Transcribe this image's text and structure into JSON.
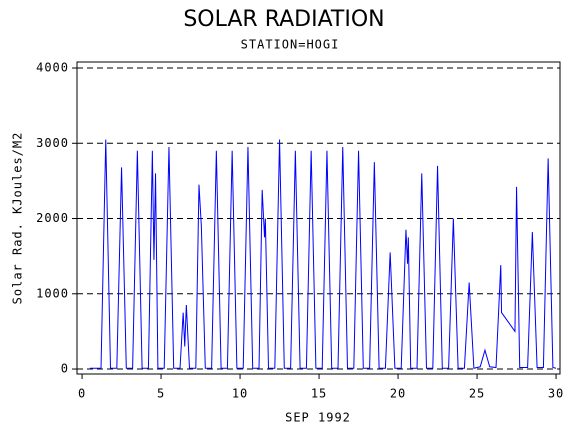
{
  "chart_data": {
    "type": "line",
    "title": "SOLAR RADIATION",
    "subtitle": "STATION=HOGI",
    "xlabel": "SEP 1992",
    "ylabel": "Solar Rad. KJoules/M2",
    "xlim": [
      -0.32,
      30.25
    ],
    "ylim": [
      -66,
      4080
    ],
    "xticks": [
      0,
      5,
      10,
      15,
      20,
      25,
      30
    ],
    "yticks": [
      0,
      1000,
      2000,
      3000,
      4000
    ],
    "grid": true,
    "series": [
      {
        "color": "#0000ff",
        "x": [
          0.5,
          1.2,
          1.5,
          1.8,
          2.2,
          2.5,
          2.8,
          3.2,
          3.5,
          3.8,
          4.2,
          4.45,
          4.55,
          4.65,
          4.8,
          5.2,
          5.5,
          5.8,
          6.2,
          6.4,
          6.5,
          6.6,
          6.8,
          7.2,
          7.4,
          7.55,
          7.8,
          8.2,
          8.5,
          8.8,
          9.2,
          9.5,
          9.8,
          10.2,
          10.5,
          10.8,
          11.2,
          11.4,
          11.55,
          11.6,
          11.8,
          12.2,
          12.5,
          12.8,
          13.2,
          13.5,
          13.8,
          14.2,
          14.5,
          14.8,
          15.2,
          15.5,
          15.8,
          16.2,
          16.5,
          16.8,
          17.2,
          17.5,
          17.8,
          18.2,
          18.5,
          18.8,
          19.2,
          19.5,
          19.8,
          20.2,
          20.5,
          20.6,
          20.65,
          20.8,
          21.2,
          21.5,
          21.8,
          22.2,
          22.5,
          22.8,
          23.2,
          23.5,
          23.8,
          24.2,
          24.5,
          24.8,
          25.2,
          25.5,
          25.8,
          26.2,
          26.5,
          26.55,
          27.4,
          27.5,
          27.7,
          28.2,
          28.5,
          28.8,
          29.2,
          29.5,
          29.8,
          30.0
        ],
        "values": [
          10,
          10,
          3050,
          10,
          10,
          2680,
          10,
          10,
          2900,
          10,
          10,
          2900,
          1450,
          2600,
          10,
          10,
          2950,
          10,
          10,
          750,
          300,
          850,
          10,
          10,
          2450,
          1900,
          10,
          10,
          2900,
          10,
          10,
          2900,
          10,
          10,
          2950,
          10,
          10,
          2380,
          1750,
          2000,
          10,
          10,
          3050,
          10,
          10,
          2900,
          10,
          10,
          2900,
          10,
          10,
          2900,
          10,
          10,
          2950,
          10,
          10,
          2900,
          10,
          10,
          2750,
          10,
          10,
          1550,
          10,
          10,
          1850,
          1400,
          1750,
          10,
          10,
          2600,
          10,
          10,
          2700,
          10,
          10,
          2000,
          10,
          10,
          1150,
          10,
          30,
          250,
          30,
          20,
          1380,
          750,
          500,
          2420,
          20,
          20,
          1820,
          20,
          20,
          2800,
          20,
          10
        ]
      }
    ]
  }
}
